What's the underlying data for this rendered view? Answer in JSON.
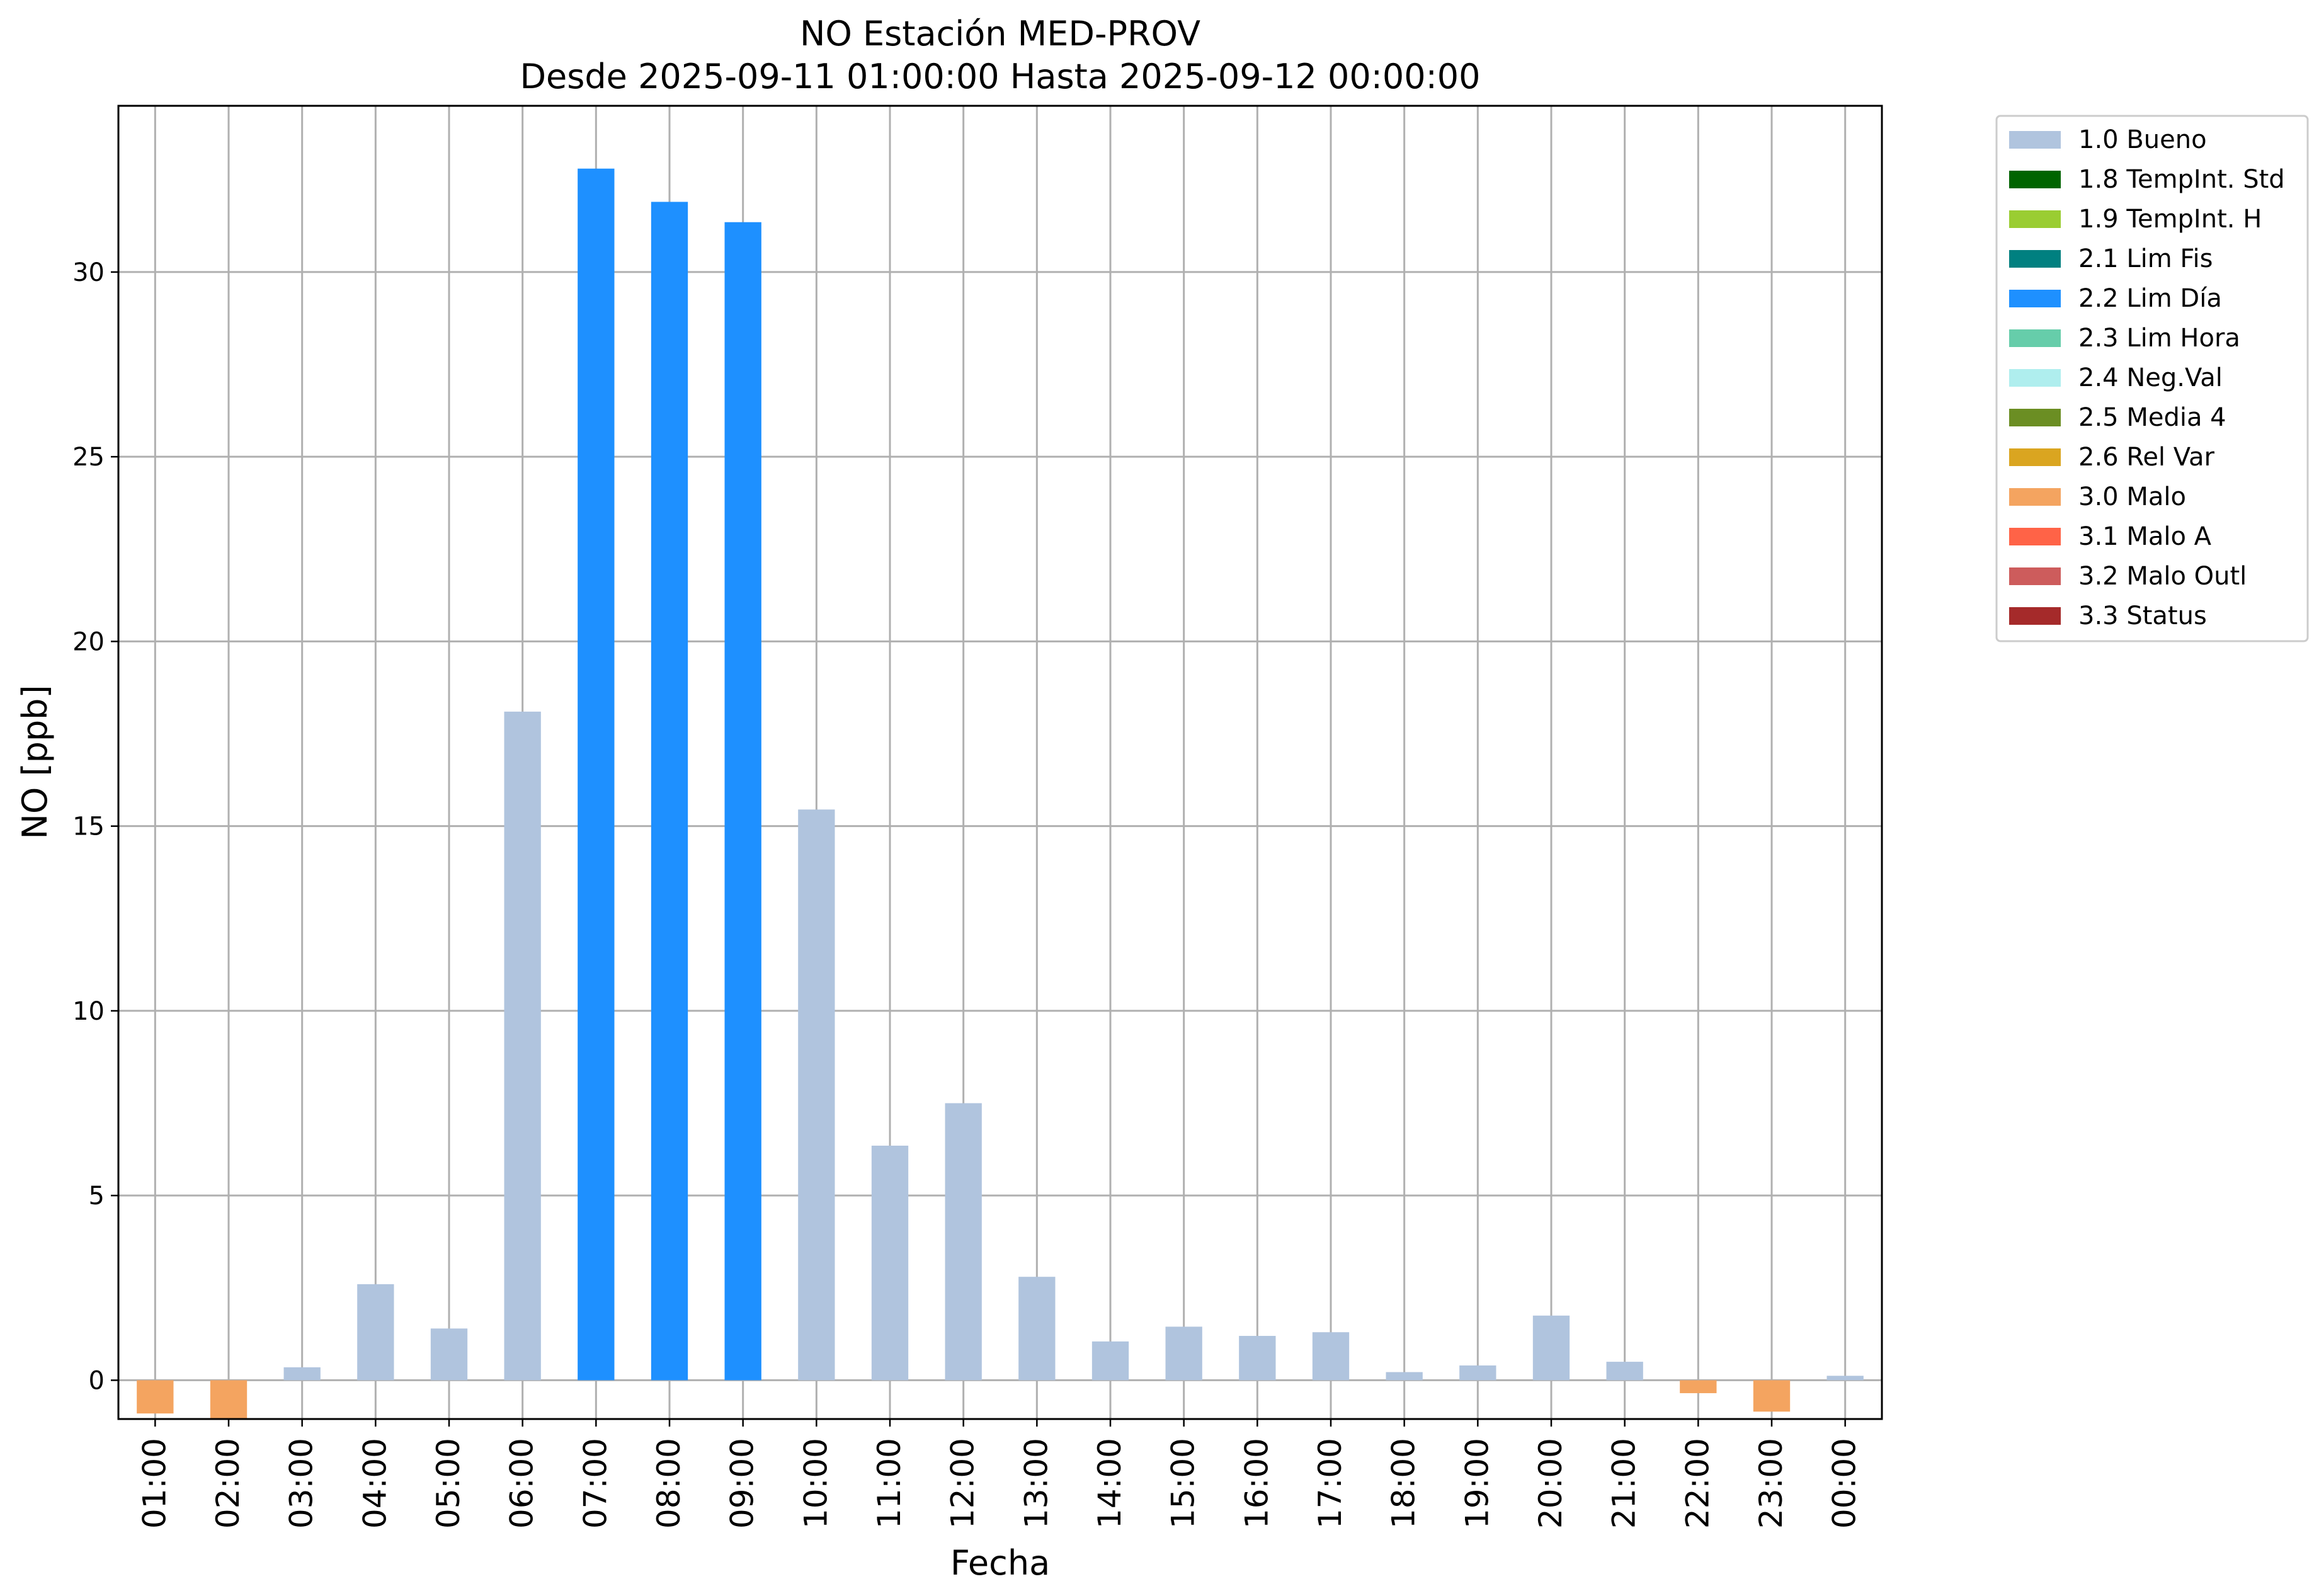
{
  "chart_data": {
    "type": "bar",
    "title": "NO Estación MED-PROV",
    "subtitle": "Desde 2025-09-11 01:00:00 Hasta 2025-09-12 00:00:00",
    "xlabel": "Fecha",
    "ylabel": "NO [ppb]",
    "ylim": [
      -1.05,
      34.5
    ],
    "yticks": [
      0,
      5,
      10,
      15,
      20,
      25,
      30
    ],
    "grid": true,
    "legend_position": "outside-top-right",
    "categories": [
      "01:00",
      "02:00",
      "03:00",
      "04:00",
      "05:00",
      "06:00",
      "07:00",
      "08:00",
      "09:00",
      "10:00",
      "11:00",
      "12:00",
      "13:00",
      "14:00",
      "15:00",
      "16:00",
      "17:00",
      "18:00",
      "19:00",
      "20:00",
      "21:00",
      "22:00",
      "23:00",
      "00:00"
    ],
    "values": [
      -0.9,
      -1.05,
      0.35,
      2.6,
      1.4,
      18.1,
      32.8,
      31.9,
      31.35,
      15.45,
      6.35,
      7.5,
      2.8,
      1.05,
      1.45,
      1.2,
      1.3,
      0.22,
      0.4,
      1.75,
      0.5,
      -0.35,
      -0.85,
      0.12
    ],
    "flags": [
      "3.0 Malo",
      "3.0 Malo",
      "1.0 Bueno",
      "1.0 Bueno",
      "1.0 Bueno",
      "1.0 Bueno",
      "2.2 Lim Día",
      "2.2 Lim Día",
      "2.2 Lim Día",
      "1.0 Bueno",
      "1.0 Bueno",
      "1.0 Bueno",
      "1.0 Bueno",
      "1.0 Bueno",
      "1.0 Bueno",
      "1.0 Bueno",
      "1.0 Bueno",
      "1.0 Bueno",
      "1.0 Bueno",
      "1.0 Bueno",
      "1.0 Bueno",
      "3.0 Malo",
      "3.0 Malo",
      "1.0 Bueno"
    ],
    "legend": [
      {
        "label": "1.0 Bueno",
        "color": "#b0c4de"
      },
      {
        "label": "1.8 TempInt. Std",
        "color": "#006400"
      },
      {
        "label": "1.9 TempInt. H",
        "color": "#9acd32"
      },
      {
        "label": "2.1 Lim Fis",
        "color": "#008080"
      },
      {
        "label": "2.2 Lim Día",
        "color": "#1e90ff"
      },
      {
        "label": "2.3 Lim Hora",
        "color": "#66cdaa"
      },
      {
        "label": "2.4 Neg.Val",
        "color": "#afeeee"
      },
      {
        "label": "2.5 Media 4",
        "color": "#6b8e23"
      },
      {
        "label": "2.6 Rel Var",
        "color": "#daa520"
      },
      {
        "label": "3.0 Malo",
        "color": "#f4a460"
      },
      {
        "label": "3.1 Malo A",
        "color": "#ff6347"
      },
      {
        "label": "3.2 Malo Outl",
        "color": "#cd5c5c"
      },
      {
        "label": "3.3 Status",
        "color": "#a52a2a"
      }
    ]
  }
}
